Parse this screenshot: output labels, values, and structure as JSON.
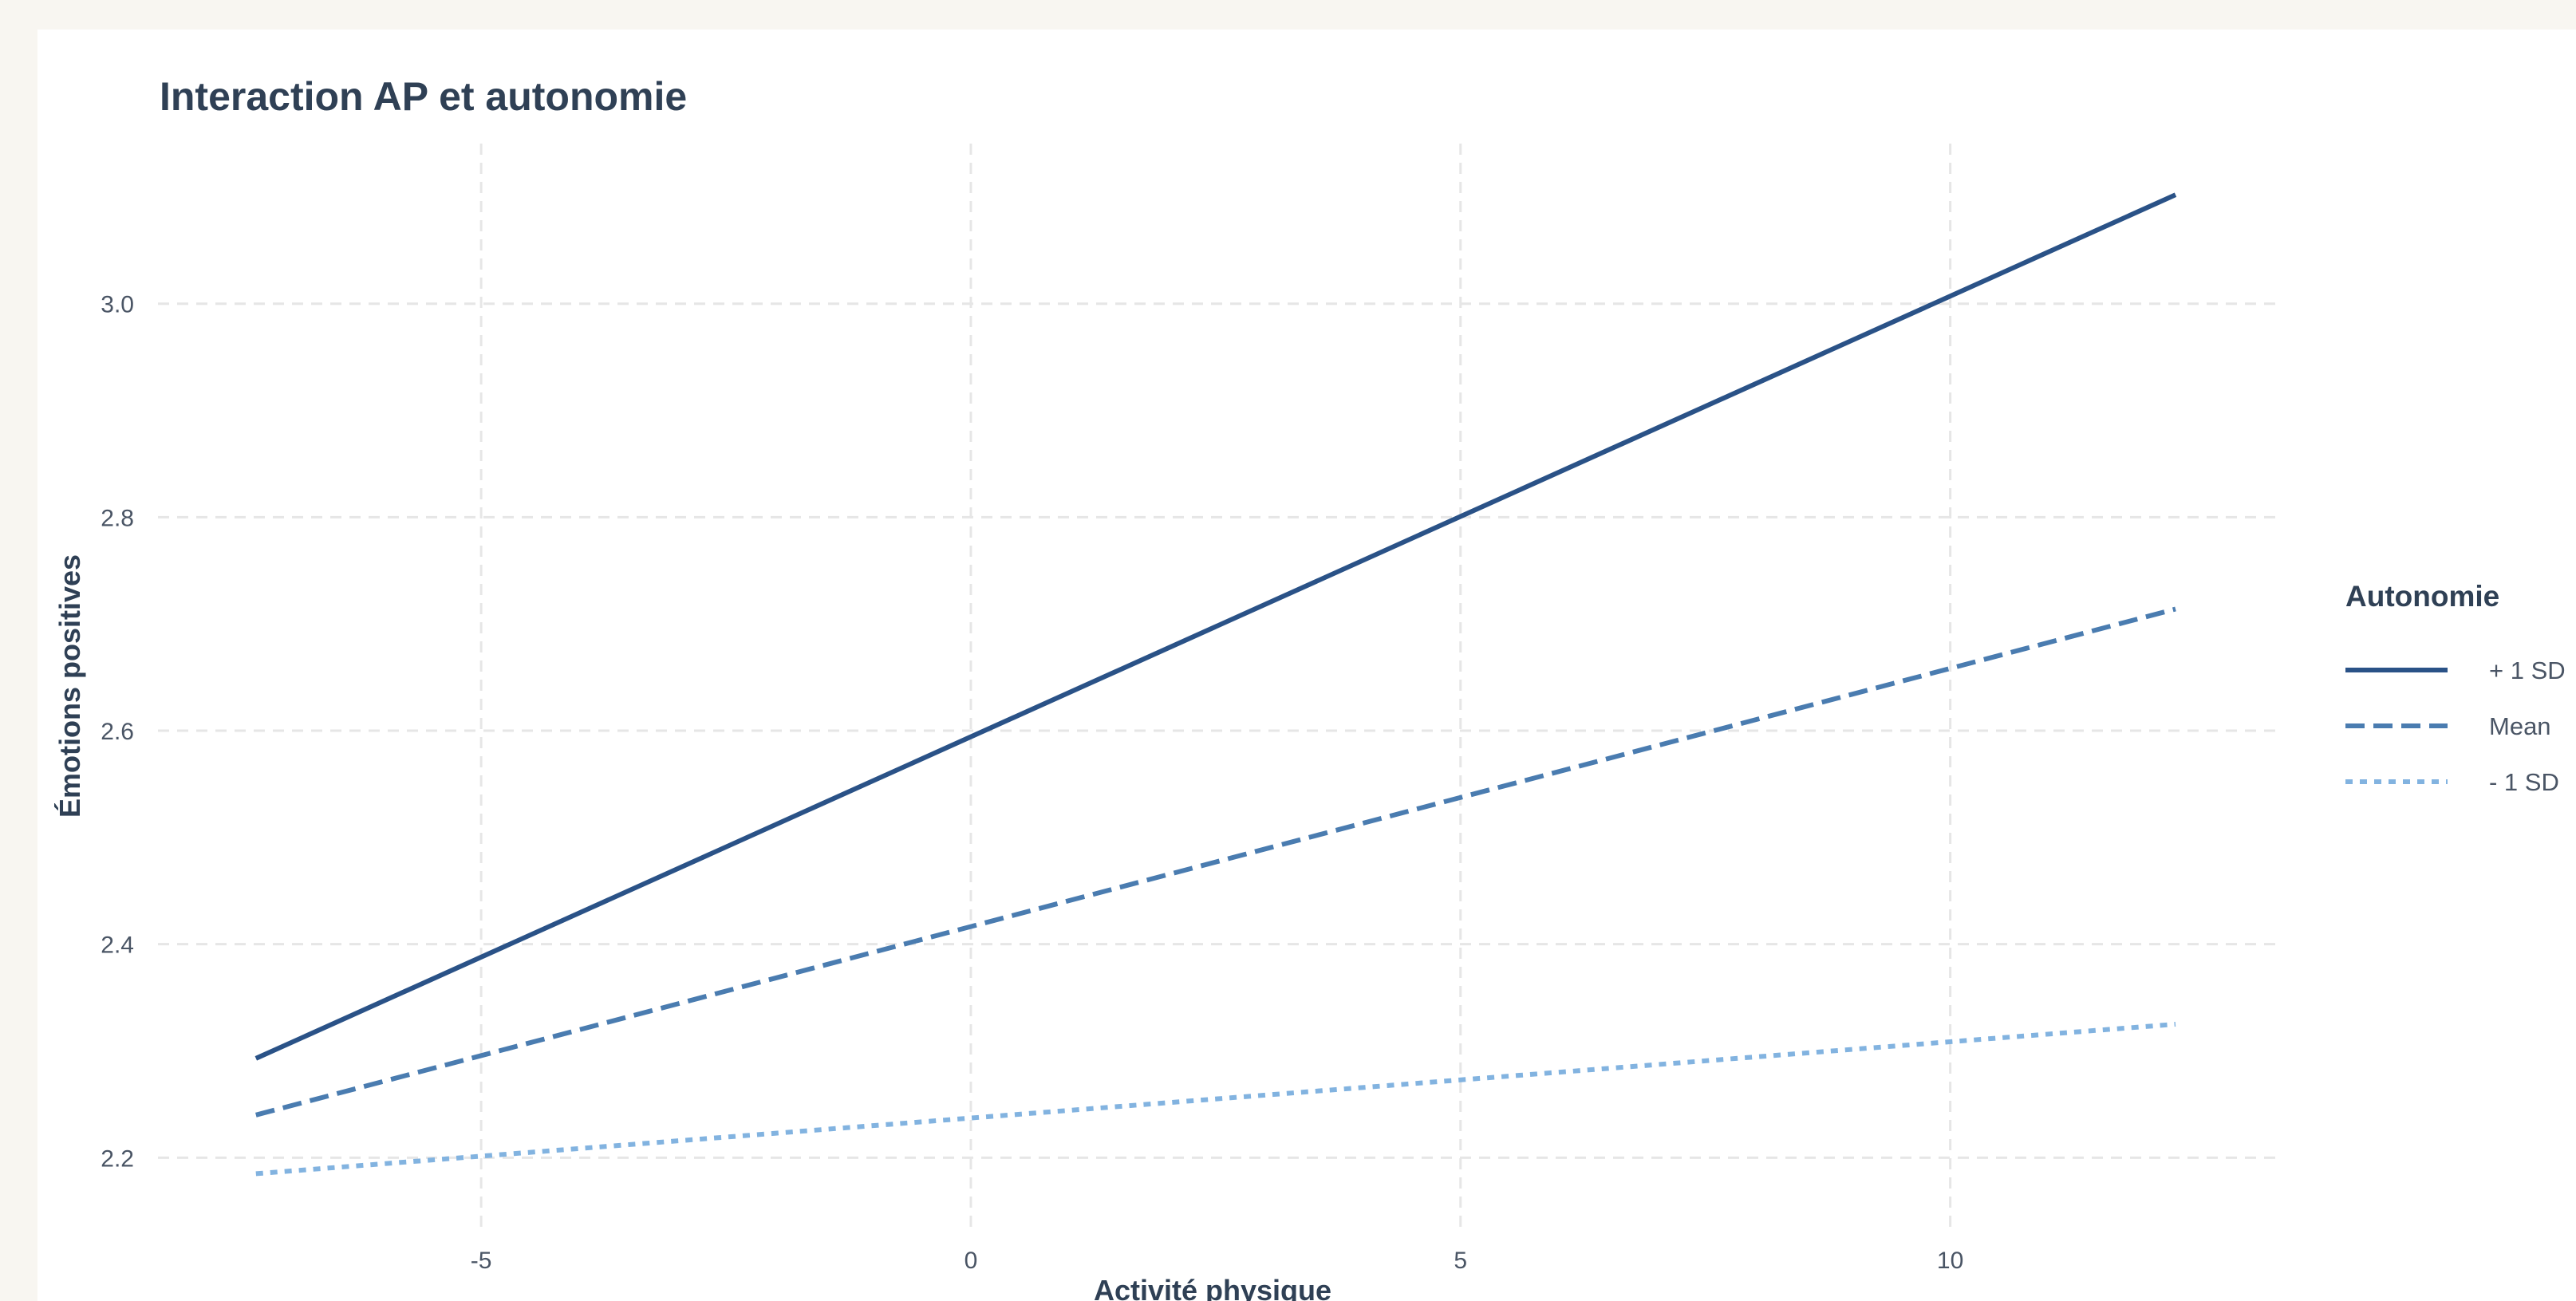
{
  "chart_data": {
    "type": "line",
    "title": "Interaction AP et autonomie",
    "xlabel": "Activité physique",
    "ylabel": "Émotions positives",
    "xlim": [
      -8.3,
      13.4
    ],
    "ylim": [
      2.13,
      3.15
    ],
    "xticks": [
      -5,
      0,
      5,
      10
    ],
    "yticks": [
      2.2,
      2.4,
      2.6,
      2.8,
      3.0
    ],
    "x_tick_labels": [
      "-5",
      "0",
      "5",
      "10"
    ],
    "y_tick_labels": [
      "2.2",
      "2.4",
      "2.6",
      "2.8",
      "3.0"
    ],
    "grid": true,
    "legend": {
      "title": "Autonomie",
      "position": "right",
      "entries": [
        "+ 1 SD",
        "Mean",
        "- 1 SD"
      ]
    },
    "series": [
      {
        "name": "+ 1 SD",
        "linetype": "solid",
        "color": "#2a5287",
        "x": [
          -7.3,
          12.3
        ],
        "y": [
          2.293,
          3.102
        ]
      },
      {
        "name": "Mean",
        "linetype": "dashed",
        "color": "#4a7cb0",
        "x": [
          -7.3,
          12.3
        ],
        "y": [
          2.24,
          2.714
        ]
      },
      {
        "name": "- 1 SD",
        "linetype": "dotted",
        "color": "#82b3e0",
        "x": [
          -7.3,
          12.3
        ],
        "y": [
          2.185,
          2.325
        ]
      }
    ]
  }
}
